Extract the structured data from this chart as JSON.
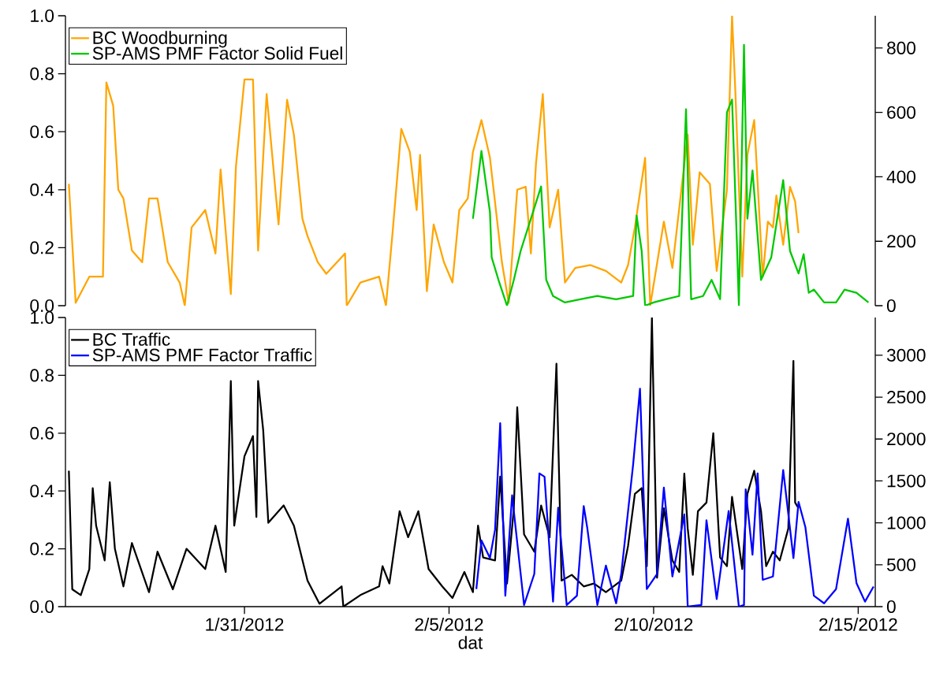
{
  "chart_data": [
    {
      "type": "line",
      "xlim": [
        "2012-01-26T15:00",
        "2012-02-15T10:00"
      ],
      "ylim": [
        0,
        1
      ],
      "yticks": [
        {
          "value": 0,
          "label": "0.0"
        },
        {
          "value": 0.2,
          "label": "0.2"
        },
        {
          "value": 0.4,
          "label": "0.4"
        },
        {
          "value": 0.6,
          "label": "0.6"
        },
        {
          "value": 0.8,
          "label": "0.8"
        },
        {
          "value": 1,
          "label": "1.0"
        }
      ],
      "y2lim": [
        0,
        900
      ],
      "y2ticks": [
        0,
        200,
        400,
        600,
        800
      ],
      "tick_labels": "y",
      "legend": "top left",
      "grid": false,
      "line_style": "solid",
      "series": [
        {
          "name": "BC Woodburning",
          "color": "#ffa500",
          "x": [
            "2012-01-26T17:00",
            "2012-01-26T21:00",
            "2012-01-27T05:00",
            "2012-01-27T13:00",
            "2012-01-27T15:00",
            "2012-01-27T19:00",
            "2012-01-27T22:00",
            "2012-01-28T01:00",
            "2012-01-28T06:00",
            "2012-01-28T12:00",
            "2012-01-28T16:00",
            "2012-01-28T21:00",
            "2012-01-29T03:00",
            "2012-01-29T10:00",
            "2012-01-29T13:00",
            "2012-01-29T17:00",
            "2012-01-30T01:00",
            "2012-01-30T07:00",
            "2012-01-30T10:00",
            "2012-01-30T16:00",
            "2012-01-30T19:00",
            "2012-01-31T00:00",
            "2012-01-31T05:00",
            "2012-01-31T08:00",
            "2012-01-31T13:00",
            "2012-01-31T20:00",
            "2012-02-01T01:00",
            "2012-02-01T05:00",
            "2012-02-01T10:00",
            "2012-02-01T13:00",
            "2012-02-01T19:00",
            "2012-02-02T00:00",
            "2012-02-02T11:00",
            "2012-02-02T12:00",
            "2012-02-02T20:00",
            "2012-02-03T07:00",
            "2012-02-03T11:00",
            "2012-02-03T15:00",
            "2012-02-03T20:00",
            "2012-02-04T01:00",
            "2012-02-04T05:00",
            "2012-02-04T07:00",
            "2012-02-04T11:00",
            "2012-02-04T15:00",
            "2012-02-04T21:00",
            "2012-02-05T02:00",
            "2012-02-05T06:00",
            "2012-02-05T11:00",
            "2012-02-05T14:00",
            "2012-02-05T19:00",
            "2012-02-06T00:00",
            "2012-02-06T07:00",
            "2012-02-06T11:00",
            "2012-02-06T16:00",
            "2012-02-06T21:00",
            "2012-02-07T00:00",
            "2012-02-07T03:00",
            "2012-02-07T07:00",
            "2012-02-07T11:00",
            "2012-02-07T16:00",
            "2012-02-07T20:00",
            "2012-02-08T02:00",
            "2012-02-08T11:00",
            "2012-02-08T20:00",
            "2012-02-09T05:00",
            "2012-02-09T09:00",
            "2012-02-09T13:00",
            "2012-02-09T19:00",
            "2012-02-09T22:00",
            "2012-02-10T06:00",
            "2012-02-10T11:00",
            "2012-02-10T20:00",
            "2012-02-10T23:00",
            "2012-02-11T03:00",
            "2012-02-11T09:00",
            "2012-02-11T13:00",
            "2012-02-11T19:00",
            "2012-02-11T22:00",
            "2012-02-12T00:00",
            "2012-02-12T04:00",
            "2012-02-12T07:00",
            "2012-02-12T11:00",
            "2012-02-12T16:00",
            "2012-02-12T19:00",
            "2012-02-12T22:00",
            "2012-02-13T00:00",
            "2012-02-13T04:00",
            "2012-02-13T08:00",
            "2012-02-13T11:00",
            "2012-02-13T13:00"
          ],
          "values": [
            0.42,
            0.01,
            0.1,
            0.1,
            0.77,
            0.69,
            0.4,
            0.37,
            0.19,
            0.15,
            0.37,
            0.37,
            0.15,
            0.08,
            0.0,
            0.27,
            0.33,
            0.18,
            0.47,
            0.04,
            0.48,
            0.78,
            0.78,
            0.19,
            0.73,
            0.28,
            0.71,
            0.59,
            0.3,
            0.24,
            0.15,
            0.11,
            0.18,
            0.0,
            0.08,
            0.1,
            0.0,
            0.26,
            0.61,
            0.53,
            0.33,
            0.52,
            0.05,
            0.28,
            0.15,
            0.08,
            0.33,
            0.37,
            0.53,
            0.64,
            0.51,
            0.15,
            0.01,
            0.4,
            0.41,
            0.18,
            0.49,
            0.73,
            0.27,
            0.4,
            0.08,
            0.13,
            0.14,
            0.12,
            0.08,
            0.14,
            0.27,
            0.51,
            0.0,
            0.29,
            0.13,
            0.59,
            0.21,
            0.46,
            0.42,
            0.12,
            0.4,
            1.0,
            0.73,
            0.1,
            0.52,
            0.64,
            0.1,
            0.29,
            0.27,
            0.38,
            0.21,
            0.41,
            0.36,
            0.25
          ]
        },
        {
          "name": "SP-AMS PMF Factor Solid Fuel",
          "color": "#00c800",
          "axis": "y2",
          "x": [
            "2012-02-05T14:00",
            "2012-02-05T19:00",
            "2012-02-06T00:00",
            "2012-02-06T01:00",
            "2012-02-06T05:00",
            "2012-02-06T10:00",
            "2012-02-06T14:00",
            "2012-02-06T18:00",
            "2012-02-07T00:00",
            "2012-02-07T06:00",
            "2012-02-07T09:00",
            "2012-02-07T13:00",
            "2012-02-07T20:00",
            "2012-02-08T05:00",
            "2012-02-08T15:00",
            "2012-02-09T02:00",
            "2012-02-09T12:00",
            "2012-02-09T14:00",
            "2012-02-09T17:00",
            "2012-02-09T19:00",
            "2012-02-10T00:00",
            "2012-02-10T07:00",
            "2012-02-10T15:00",
            "2012-02-10T19:00",
            "2012-02-10T22:00",
            "2012-02-11T05:00",
            "2012-02-11T10:00",
            "2012-02-11T15:00",
            "2012-02-11T19:00",
            "2012-02-11T22:00",
            "2012-02-12T01:00",
            "2012-02-12T02:00",
            "2012-02-12T05:00",
            "2012-02-12T07:00",
            "2012-02-12T10:00",
            "2012-02-12T15:00",
            "2012-02-12T21:00",
            "2012-02-13T04:00",
            "2012-02-13T08:00",
            "2012-02-13T13:00",
            "2012-02-13T16:00",
            "2012-02-13T19:00",
            "2012-02-13T22:00",
            "2012-02-14T04:00",
            "2012-02-14T11:00",
            "2012-02-14T16:00",
            "2012-02-14T23:00",
            "2012-02-15T06:00"
          ],
          "values": [
            270,
            480,
            290,
            150,
            80,
            0,
            80,
            170,
            270,
            370,
            80,
            30,
            10,
            20,
            30,
            20,
            30,
            280,
            170,
            0,
            10,
            20,
            30,
            610,
            20,
            30,
            80,
            20,
            600,
            640,
            170,
            0,
            810,
            270,
            420,
            80,
            150,
            390,
            170,
            100,
            160,
            40,
            50,
            10,
            10,
            50,
            40,
            10
          ]
        }
      ]
    },
    {
      "type": "line",
      "xlim": [
        "2012-01-26T15:00",
        "2012-02-15T10:00"
      ],
      "xticks": [
        {
          "value": "2012-01-31",
          "label": "1/31/2012"
        },
        {
          "value": "2012-02-05",
          "label": "2/5/2012"
        },
        {
          "value": "2012-02-10",
          "label": "2/10/2012"
        },
        {
          "value": "2012-02-15",
          "label": "2/15/2012"
        }
      ],
      "xlabel": "dat",
      "ylim": [
        0,
        1
      ],
      "yticks": [
        {
          "value": 0,
          "label": "0.0"
        },
        {
          "value": 0.2,
          "label": "0.2"
        },
        {
          "value": 0.4,
          "label": "0.4"
        },
        {
          "value": 0.6,
          "label": "0.6"
        },
        {
          "value": 0.8,
          "label": "0.8"
        },
        {
          "value": 1,
          "label": "1.0"
        }
      ],
      "y2lim": [
        0,
        3450
      ],
      "y2ticks": [
        0,
        500,
        1000,
        1500,
        2000,
        2500,
        3000
      ],
      "legend": "top left",
      "grid": false,
      "line_style": "solid",
      "series": [
        {
          "name": "BC Traffic",
          "color": "#000000",
          "x": [
            "2012-01-26T17:00",
            "2012-01-26T19:00",
            "2012-01-27T00:00",
            "2012-01-27T05:00",
            "2012-01-27T07:00",
            "2012-01-27T09:00",
            "2012-01-27T14:00",
            "2012-01-27T17:00",
            "2012-01-27T20:00",
            "2012-01-28T01:00",
            "2012-01-28T06:00",
            "2012-01-28T16:00",
            "2012-01-28T21:00",
            "2012-01-29T06:00",
            "2012-01-29T14:00",
            "2012-01-30T01:00",
            "2012-01-30T07:00",
            "2012-01-30T13:00",
            "2012-01-30T16:00",
            "2012-01-30T18:00",
            "2012-01-31T00:00",
            "2012-01-31T05:00",
            "2012-01-31T07:00",
            "2012-01-31T08:00",
            "2012-01-31T11:00",
            "2012-01-31T14:00",
            "2012-01-31T23:00",
            "2012-02-01T05:00",
            "2012-02-01T13:00",
            "2012-02-01T20:00",
            "2012-02-02T09:00",
            "2012-02-02T10:00",
            "2012-02-02T20:00",
            "2012-02-03T07:00",
            "2012-02-03T09:00",
            "2012-02-03T13:00",
            "2012-02-03T19:00",
            "2012-02-04T00:00",
            "2012-02-04T06:00",
            "2012-02-04T12:00",
            "2012-02-04T20:00",
            "2012-02-05T02:00",
            "2012-02-05T09:00",
            "2012-02-05T14:00",
            "2012-02-05T17:00",
            "2012-02-05T20:00",
            "2012-02-06T03:00",
            "2012-02-06T06:00",
            "2012-02-06T10:00",
            "2012-02-06T14:00",
            "2012-02-06T16:00",
            "2012-02-06T20:00",
            "2012-02-07T02:00",
            "2012-02-07T06:00",
            "2012-02-07T11:00",
            "2012-02-07T15:00",
            "2012-02-07T18:00",
            "2012-02-08T00:00",
            "2012-02-08T07:00",
            "2012-02-08T13:00",
            "2012-02-08T20:00",
            "2012-02-09T05:00",
            "2012-02-09T09:00",
            "2012-02-09T13:00",
            "2012-02-09T17:00",
            "2012-02-09T20:00",
            "2012-02-09T23:00",
            "2012-02-10T02:00",
            "2012-02-10T06:00",
            "2012-02-10T11:00",
            "2012-02-10T15:00",
            "2012-02-10T18:00",
            "2012-02-10T20:00",
            "2012-02-10T23:00",
            "2012-02-11T02:00",
            "2012-02-11T07:00",
            "2012-02-11T11:00",
            "2012-02-11T15:00",
            "2012-02-11T19:00",
            "2012-02-11T22:00",
            "2012-02-12T04:00",
            "2012-02-12T07:00",
            "2012-02-12T11:00",
            "2012-02-12T15:00",
            "2012-02-12T18:00",
            "2012-02-12T22:00",
            "2012-02-13T02:00",
            "2012-02-13T07:00",
            "2012-02-13T10:00",
            "2012-02-13T11:00",
            "2012-02-13T13:00"
          ],
          "values": [
            0.47,
            0.06,
            0.04,
            0.13,
            0.41,
            0.28,
            0.16,
            0.43,
            0.2,
            0.07,
            0.22,
            0.05,
            0.19,
            0.06,
            0.2,
            0.13,
            0.28,
            0.12,
            0.78,
            0.28,
            0.52,
            0.59,
            0.31,
            0.78,
            0.61,
            0.29,
            0.35,
            0.28,
            0.09,
            0.01,
            0.07,
            0.0,
            0.04,
            0.07,
            0.14,
            0.08,
            0.33,
            0.24,
            0.33,
            0.13,
            0.07,
            0.03,
            0.12,
            0.05,
            0.28,
            0.17,
            0.16,
            0.45,
            0.08,
            0.34,
            0.69,
            0.25,
            0.19,
            0.35,
            0.24,
            0.84,
            0.09,
            0.11,
            0.07,
            0.08,
            0.05,
            0.09,
            0.21,
            0.39,
            0.41,
            0.14,
            1.0,
            0.1,
            0.34,
            0.16,
            0.12,
            0.46,
            0.27,
            0.11,
            0.33,
            0.36,
            0.6,
            0.17,
            0.14,
            0.38,
            0.13,
            0.39,
            0.47,
            0.33,
            0.14,
            0.19,
            0.16,
            0.27,
            0.85,
            0.36,
            0.34
          ]
        },
        {
          "name": "SP-AMS PMF Factor Traffic",
          "color": "#0000ff",
          "axis": "y2",
          "x": [
            "2012-02-05T16:00",
            "2012-02-05T19:00",
            "2012-02-06T00:00",
            "2012-02-06T03:00",
            "2012-02-06T06:00",
            "2012-02-06T09:00",
            "2012-02-06T13:00",
            "2012-02-06T15:00",
            "2012-02-06T20:00",
            "2012-02-07T02:00",
            "2012-02-07T05:00",
            "2012-02-07T08:00",
            "2012-02-07T13:00",
            "2012-02-07T16:00",
            "2012-02-07T21:00",
            "2012-02-08T03:00",
            "2012-02-08T07:00",
            "2012-02-08T09:00",
            "2012-02-08T15:00",
            "2012-02-08T20:00",
            "2012-02-09T02:00",
            "2012-02-09T05:00",
            "2012-02-09T12:00",
            "2012-02-09T16:00",
            "2012-02-09T20:00",
            "2012-02-10T02:00",
            "2012-02-10T06:00",
            "2012-02-10T11:00",
            "2012-02-10T18:00",
            "2012-02-10T20:00",
            "2012-02-11T04:00",
            "2012-02-11T07:00",
            "2012-02-11T13:00",
            "2012-02-11T20:00",
            "2012-02-12T02:00",
            "2012-02-12T05:00",
            "2012-02-12T06:00",
            "2012-02-12T10:00",
            "2012-02-12T13:00",
            "2012-02-12T16:00",
            "2012-02-12T22:00",
            "2012-02-13T04:00",
            "2012-02-13T10:00",
            "2012-02-13T13:00",
            "2012-02-13T17:00",
            "2012-02-13T22:00",
            "2012-02-14T04:00",
            "2012-02-14T11:00",
            "2012-02-14T18:00",
            "2012-02-14T23:00",
            "2012-02-15T04:00",
            "2012-02-15T09:00"
          ],
          "values": [
            210,
            790,
            580,
            920,
            2190,
            130,
            1330,
            950,
            20,
            390,
            1590,
            1550,
            60,
            1180,
            20,
            130,
            1200,
            950,
            20,
            490,
            40,
            390,
            1700,
            2600,
            210,
            390,
            1420,
            360,
            1100,
            0,
            20,
            1030,
            90,
            1140,
            0,
            20,
            1400,
            620,
            1590,
            320,
            360,
            1630,
            580,
            1250,
            950,
            130,
            40,
            210,
            1050,
            280,
            60,
            240
          ]
        }
      ]
    }
  ]
}
